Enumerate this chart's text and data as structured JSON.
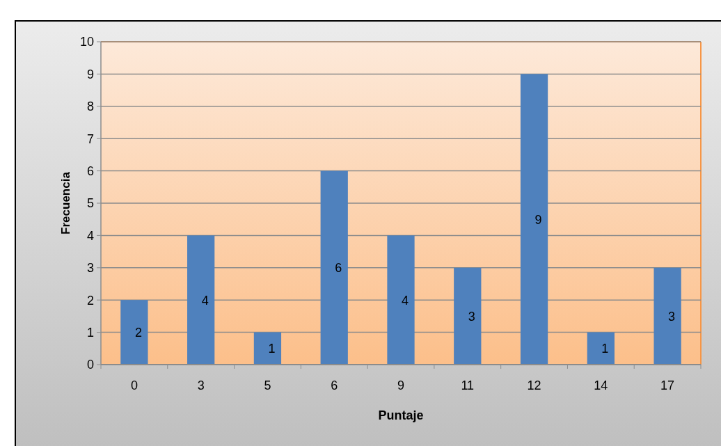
{
  "chart_data": {
    "type": "bar",
    "xlabel": "Puntaje",
    "ylabel": "Frecuencia",
    "categories": [
      "0",
      "3",
      "5",
      "6",
      "9",
      "11",
      "12",
      "14",
      "17"
    ],
    "values": [
      2,
      4,
      1,
      6,
      4,
      3,
      9,
      1,
      3
    ],
    "color": "#4f81bd",
    "ylim": [
      0,
      10
    ],
    "yticks": [
      0,
      1,
      2,
      3,
      4,
      5,
      6,
      7,
      8,
      9,
      10
    ],
    "grid": "y",
    "data_labels": true
  }
}
